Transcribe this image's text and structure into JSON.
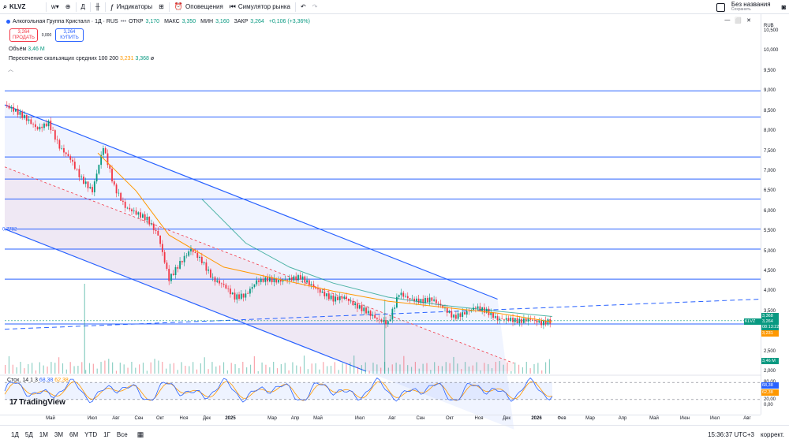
{
  "toolbar": {
    "symbol": "KLVZ",
    "interval": "Д",
    "indicators_label": "Индикаторы",
    "alerts_label": "Оповещения",
    "replay_label": "Симулятор рынка",
    "layout_name": "Без названия",
    "layout_status": "Сохранить"
  },
  "legend": {
    "title": "Алкогольная Группа Кристалл · 1Д · RUS",
    "open_label": "ОТКР",
    "open": "3,170",
    "high_label": "МАКС",
    "high": "3,350",
    "low_label": "МИН",
    "low": "3,160",
    "close_label": "ЗАКР",
    "close": "3,264",
    "change": "+0,106 (+3,36%)",
    "sell_price": "3,264",
    "sell_label": "ПРОДАТЬ",
    "spread": "0,000",
    "buy_price": "3,264",
    "buy_label": "КУПИТЬ",
    "volume_label": "Объём",
    "volume_value": "3,46 M",
    "ma_label": "Пересечение скользящих средних 100 200",
    "ma_value1": "3,231",
    "ma_value2": "3,368",
    "ma_symbol": "ø"
  },
  "price_scale": {
    "currency": "RUB",
    "ticks": [
      "10,500",
      "10,000",
      "9,500",
      "9,000",
      "8,500",
      "8,000",
      "7,500",
      "7,000",
      "6,500",
      "6,000",
      "5,500",
      "5,000",
      "4,500",
      "4,000",
      "3,500",
      "3,000",
      "2,500",
      "2,000"
    ],
    "tags": {
      "ma200": "3,368",
      "symbol": "KLVZ",
      "price": "3,264",
      "countdown": "08:13:22",
      "ma100": "3,231",
      "volume": "3,46 M"
    },
    "osc_ticks": [
      "80,00",
      "20,00",
      "0,00"
    ],
    "osc_tags": [
      "68,38",
      "62,38"
    ]
  },
  "oscillator": {
    "label": "Стох. 14 1 3",
    "k": "68,38",
    "d": "62,38"
  },
  "left_label": "0,7782",
  "logo_text": "TradingView",
  "time_axis": [
    "Май",
    "Июл",
    "Авг",
    "Сен",
    "Окт",
    "Ноя",
    "Дек",
    "2025",
    "Мар",
    "Апр",
    "Май",
    "Июл",
    "Авг",
    "Сен",
    "Окт",
    "Ноя",
    "Дек",
    "2026",
    "Фев",
    "Мар",
    "Апр",
    "Май",
    "Июн",
    "Июл",
    "Авг",
    "Сен"
  ],
  "bottom": {
    "ranges": [
      "1Д",
      "5Д",
      "1М",
      "3М",
      "6М",
      "YTD",
      "1Г",
      "Все"
    ],
    "clock": "15:36:37 UTC+3",
    "adjust": "коррект."
  },
  "chart_data": {
    "type": "candlestick",
    "symbol": "KLVZ",
    "timeframe": "1Д",
    "y_range": [
      2.0,
      10.6
    ],
    "x_labels": [
      "Май",
      "Июл",
      "Авг",
      "Сен",
      "Окт",
      "Ноя",
      "Дек",
      "2025",
      "Мар",
      "Апр",
      "Май",
      "Июл",
      "Авг",
      "Сен",
      "Окт",
      "Ноя",
      "Дек",
      "2026",
      "Фев",
      "Мар",
      "Апр",
      "Май",
      "Июн",
      "Июл",
      "Авг",
      "Сен"
    ],
    "price_path": [
      [
        0,
        8.65
      ],
      [
        2,
        8.5
      ],
      [
        4,
        8.3
      ],
      [
        6,
        8.05
      ],
      [
        8,
        8.2
      ],
      [
        10,
        7.6
      ],
      [
        12,
        7.3
      ],
      [
        14,
        6.8
      ],
      [
        16,
        6.5
      ],
      [
        18,
        7.6
      ],
      [
        20,
        6.6
      ],
      [
        22,
        6.1
      ],
      [
        24,
        5.95
      ],
      [
        26,
        5.8
      ],
      [
        28,
        5.4
      ],
      [
        30,
        4.3
      ],
      [
        32,
        4.7
      ],
      [
        34,
        5.05
      ],
      [
        36,
        4.75
      ],
      [
        38,
        4.3
      ],
      [
        40,
        4.15
      ],
      [
        42,
        3.85
      ],
      [
        44,
        3.9
      ],
      [
        46,
        4.25
      ],
      [
        48,
        4.3
      ],
      [
        50,
        4.25
      ],
      [
        52,
        4.3
      ],
      [
        54,
        4.35
      ],
      [
        56,
        4.15
      ],
      [
        58,
        3.95
      ],
      [
        60,
        3.8
      ],
      [
        62,
        3.85
      ],
      [
        64,
        3.65
      ],
      [
        66,
        3.5
      ],
      [
        68,
        3.3
      ],
      [
        70,
        3.2
      ],
      [
        72,
        3.95
      ],
      [
        74,
        3.8
      ],
      [
        76,
        3.75
      ],
      [
        78,
        3.8
      ],
      [
        80,
        3.6
      ],
      [
        82,
        3.35
      ],
      [
        84,
        3.45
      ],
      [
        86,
        3.6
      ],
      [
        88,
        3.5
      ],
      [
        90,
        3.3
      ],
      [
        92,
        3.3
      ],
      [
        94,
        3.25
      ],
      [
        96,
        3.3
      ],
      [
        98,
        3.2
      ],
      [
        100,
        3.264
      ]
    ],
    "ma100_path": [
      [
        17,
        7.45
      ],
      [
        24,
        6.5
      ],
      [
        30,
        5.4
      ],
      [
        40,
        4.6
      ],
      [
        50,
        4.3
      ],
      [
        60,
        4.0
      ],
      [
        70,
        3.75
      ],
      [
        80,
        3.6
      ],
      [
        90,
        3.45
      ],
      [
        100,
        3.231
      ]
    ],
    "ma200_path": [
      [
        36,
        6.3
      ],
      [
        44,
        5.2
      ],
      [
        52,
        4.6
      ],
      [
        60,
        4.2
      ],
      [
        70,
        3.85
      ],
      [
        80,
        3.65
      ],
      [
        90,
        3.5
      ],
      [
        100,
        3.368
      ]
    ],
    "channel_upper": [
      [
        0,
        8.65
      ],
      [
        90,
        3.8
      ]
    ],
    "channel_lower": [
      [
        0,
        5.55
      ],
      [
        66,
        2.0
      ]
    ],
    "trend_dashed_blue": [
      [
        0,
        3.05
      ],
      [
        138,
        3.8
      ]
    ],
    "trend_dashed_red": [
      [
        0,
        7.1
      ],
      [
        93,
        2.2
      ]
    ],
    "horizontal_levels": [
      9.0,
      8.35,
      7.35,
      6.8,
      6.3,
      5.55,
      5.05,
      4.3,
      3.18
    ],
    "stochastic_k": [
      68.38
    ],
    "stochastic_d": [
      62.38
    ],
    "osc_bands": [
      80,
      20
    ]
  }
}
